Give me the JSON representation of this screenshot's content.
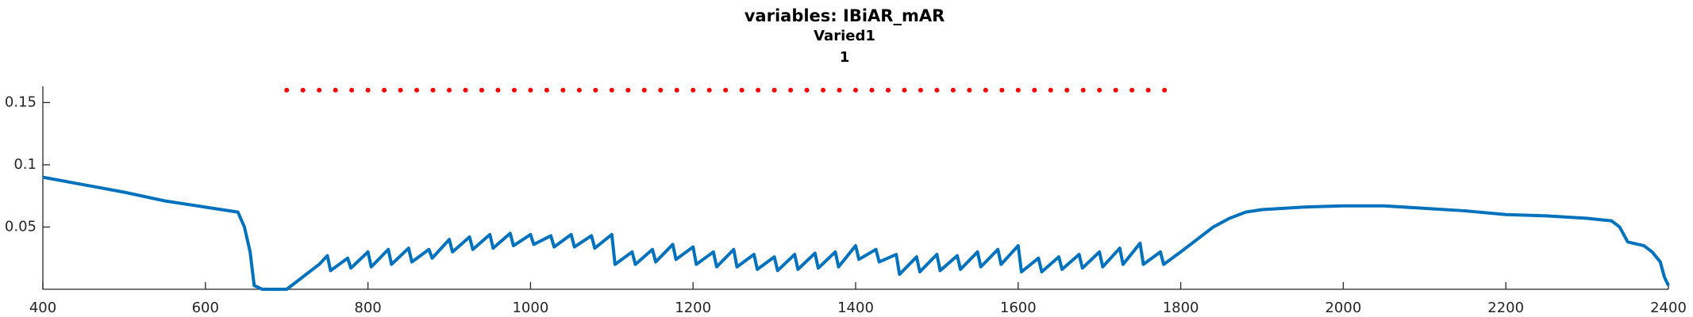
{
  "chart_data": {
    "type": "line",
    "title": "variables: IBiAR_mAR",
    "subtitle": "Varied1",
    "subtitle2": "1",
    "xlim": [
      400,
      2400
    ],
    "xticks": [
      400,
      600,
      800,
      1000,
      1200,
      1400,
      1600,
      1800,
      2000,
      2200,
      2400
    ],
    "ylim": [
      0,
      0.163
    ],
    "yticks": [
      0.05,
      0.1,
      0.15
    ],
    "series": [
      {
        "color": "#0072bd",
        "x": [
          400,
          450,
          500,
          550,
          600,
          640,
          648,
          655,
          660,
          670,
          700,
          720,
          740,
          750,
          754,
          775,
          779,
          800,
          804,
          825,
          829,
          850,
          854,
          875,
          879,
          900,
          904,
          925,
          929,
          950,
          954,
          975,
          979,
          1000,
          1004,
          1025,
          1029,
          1050,
          1054,
          1075,
          1079,
          1100,
          1104,
          1125,
          1129,
          1150,
          1154,
          1175,
          1179,
          1200,
          1204,
          1225,
          1229,
          1250,
          1254,
          1275,
          1279,
          1300,
          1304,
          1325,
          1329,
          1350,
          1354,
          1375,
          1379,
          1400,
          1404,
          1425,
          1429,
          1450,
          1454,
          1475,
          1479,
          1500,
          1504,
          1525,
          1529,
          1550,
          1554,
          1575,
          1579,
          1600,
          1604,
          1625,
          1629,
          1650,
          1654,
          1675,
          1679,
          1700,
          1704,
          1725,
          1729,
          1750,
          1754,
          1775,
          1779,
          1800,
          1820,
          1840,
          1860,
          1880,
          1900,
          1950,
          2000,
          2050,
          2100,
          2150,
          2200,
          2250,
          2300,
          2330,
          2340,
          2350,
          2370,
          2380,
          2390,
          2395,
          2400
        ],
        "values": [
          0.09,
          0.084,
          0.078,
          0.071,
          0.066,
          0.062,
          0.05,
          0.03,
          0.003,
          0,
          0,
          0.01,
          0.02,
          0.027,
          0.015,
          0.025,
          0.017,
          0.03,
          0.018,
          0.032,
          0.02,
          0.033,
          0.022,
          0.032,
          0.025,
          0.04,
          0.03,
          0.042,
          0.032,
          0.044,
          0.033,
          0.045,
          0.035,
          0.044,
          0.036,
          0.043,
          0.034,
          0.044,
          0.034,
          0.043,
          0.033,
          0.044,
          0.02,
          0.03,
          0.02,
          0.032,
          0.022,
          0.036,
          0.024,
          0.034,
          0.02,
          0.03,
          0.018,
          0.032,
          0.018,
          0.028,
          0.016,
          0.026,
          0.015,
          0.028,
          0.016,
          0.029,
          0.017,
          0.03,
          0.018,
          0.035,
          0.024,
          0.032,
          0.022,
          0.028,
          0.012,
          0.026,
          0.014,
          0.028,
          0.015,
          0.027,
          0.016,
          0.03,
          0.018,
          0.032,
          0.02,
          0.035,
          0.014,
          0.025,
          0.014,
          0.026,
          0.016,
          0.028,
          0.017,
          0.03,
          0.018,
          0.033,
          0.02,
          0.037,
          0.02,
          0.03,
          0.02,
          0.03,
          0.04,
          0.05,
          0.057,
          0.062,
          0.064,
          0.066,
          0.067,
          0.067,
          0.065,
          0.063,
          0.06,
          0.059,
          0.057,
          0.055,
          0.05,
          0.038,
          0.035,
          0.03,
          0.022,
          0.01,
          0.003
        ]
      },
      {
        "color": "#ff0000",
        "style": "dotted",
        "x": [
          700,
          720,
          740,
          760,
          780,
          800,
          820,
          840,
          860,
          880,
          900,
          920,
          940,
          960,
          980,
          1000,
          1020,
          1040,
          1060,
          1080,
          1100,
          1120,
          1140,
          1160,
          1180,
          1200,
          1220,
          1240,
          1260,
          1280,
          1300,
          1320,
          1340,
          1360,
          1380,
          1400,
          1420,
          1440,
          1460,
          1480,
          1500,
          1520,
          1540,
          1560,
          1580,
          1600,
          1620,
          1640,
          1660,
          1680,
          1700,
          1720,
          1740,
          1760,
          1780
        ],
        "values": [
          0.16,
          0.16,
          0.16,
          0.16,
          0.16,
          0.16,
          0.16,
          0.16,
          0.16,
          0.16,
          0.16,
          0.16,
          0.16,
          0.16,
          0.16,
          0.16,
          0.16,
          0.16,
          0.16,
          0.16,
          0.16,
          0.16,
          0.16,
          0.16,
          0.16,
          0.16,
          0.16,
          0.16,
          0.16,
          0.16,
          0.16,
          0.16,
          0.16,
          0.16,
          0.16,
          0.16,
          0.16,
          0.16,
          0.16,
          0.16,
          0.16,
          0.16,
          0.16,
          0.16,
          0.16,
          0.16,
          0.16,
          0.16,
          0.16,
          0.16,
          0.16,
          0.16,
          0.16,
          0.16,
          0.16
        ]
      }
    ]
  }
}
